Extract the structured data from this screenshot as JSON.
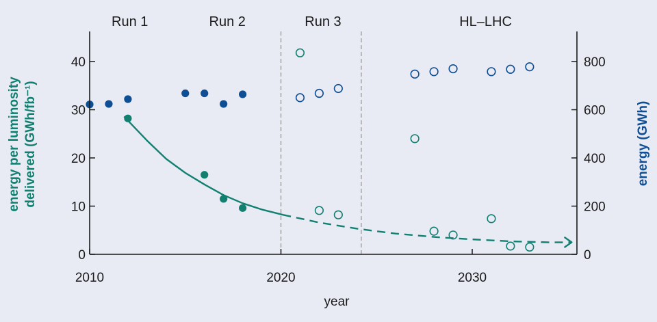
{
  "chart_data": {
    "type": "scatter",
    "title": "",
    "xlabel": "year",
    "ylabel_left": [
      "energy per luminosity",
      "delivered (GWh/fb⁻¹)"
    ],
    "ylabel_right": "energy (GWh)",
    "xlim": [
      2010,
      2036
    ],
    "ylim_left": [
      0,
      45
    ],
    "ylim_right": [
      0,
      900
    ],
    "x_ticks": [
      "2010",
      "2020",
      "2030"
    ],
    "y_left_ticks": [
      "0",
      "10",
      "20",
      "30",
      "40"
    ],
    "y_right_ticks": [
      "0",
      "200",
      "400",
      "600",
      "800"
    ],
    "runs": [
      {
        "label": "Run 1",
        "center": 2012.1
      },
      {
        "label": "Run 2",
        "center": 2017.2
      },
      {
        "label": "Run 3",
        "center": 2022.2
      },
      {
        "label": "HL–LHC",
        "center": 2030.7
      }
    ],
    "period_dividers": [
      2020,
      2024.2
    ],
    "series": [
      {
        "axis": "right",
        "style": "filled",
        "color": "#0d4e94",
        "points": [
          [
            2010,
            622
          ],
          [
            2011,
            624
          ],
          [
            2012,
            644
          ],
          [
            2015,
            668
          ],
          [
            2016,
            668
          ],
          [
            2017,
            624
          ],
          [
            2018,
            664
          ]
        ]
      },
      {
        "axis": "right",
        "style": "open",
        "color": "#0d4e94",
        "points": [
          [
            2021,
            650
          ],
          [
            2022,
            668
          ],
          [
            2023,
            688
          ],
          [
            2027,
            748
          ],
          [
            2028,
            758
          ],
          [
            2029,
            770
          ],
          [
            2031,
            758
          ],
          [
            2032,
            768
          ],
          [
            2033,
            778
          ]
        ]
      },
      {
        "axis": "left",
        "style": "filled",
        "color": "#128071",
        "points": [
          [
            2012,
            28.2
          ],
          [
            2016,
            16.5
          ],
          [
            2017,
            11.5
          ],
          [
            2018,
            9.6
          ]
        ]
      },
      {
        "axis": "left",
        "style": "open",
        "color": "#128071",
        "points": [
          [
            2021,
            41.8
          ],
          [
            2022,
            9.1
          ],
          [
            2023,
            8.2
          ],
          [
            2027,
            24.0
          ],
          [
            2028,
            4.8
          ],
          [
            2029,
            4.0
          ],
          [
            2031,
            7.4
          ],
          [
            2032,
            1.7
          ],
          [
            2033,
            1.5
          ]
        ]
      }
    ],
    "trend": {
      "axis": "left",
      "color": "#128071",
      "solid_range": [
        2011.8,
        2020.1
      ],
      "dashed_range": [
        2020.1,
        2035.2
      ],
      "points": [
        [
          2011.8,
          28.6
        ],
        [
          2013,
          23.6
        ],
        [
          2014,
          19.8
        ],
        [
          2015,
          16.9
        ],
        [
          2016,
          14.5
        ],
        [
          2017,
          12.3
        ],
        [
          2018,
          10.6
        ],
        [
          2019,
          9.3
        ],
        [
          2020.1,
          8.2
        ],
        [
          2022,
          6.6
        ],
        [
          2024,
          5.3
        ],
        [
          2026,
          4.3
        ],
        [
          2028,
          3.6
        ],
        [
          2030,
          3.1
        ],
        [
          2032,
          2.7
        ],
        [
          2034,
          2.5
        ],
        [
          2035.2,
          2.5
        ]
      ]
    }
  }
}
